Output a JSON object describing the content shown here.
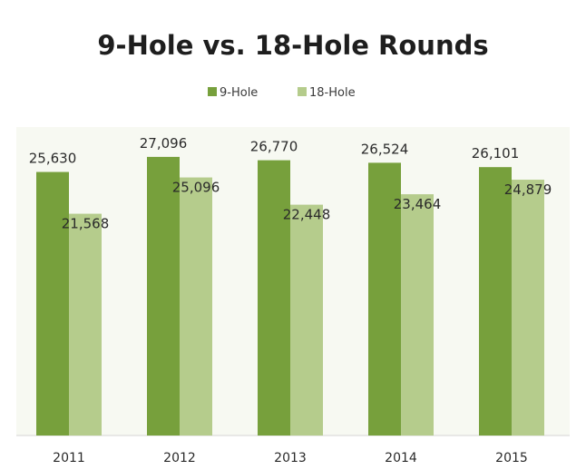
{
  "chart_data": {
    "type": "bar",
    "title": "9-Hole vs. 18-Hole Rounds",
    "categories": [
      "2011",
      "2012",
      "2013",
      "2014",
      "2015"
    ],
    "series": [
      {
        "name": "9-Hole",
        "values": [
          25630,
          27096,
          26770,
          26524,
          26101
        ],
        "labels": [
          "25,630",
          "27,096",
          "26,770",
          "26,524",
          "26,101"
        ],
        "color": "#77a03c"
      },
      {
        "name": "18-Hole",
        "values": [
          21568,
          25096,
          22448,
          23464,
          24879
        ],
        "labels": [
          "21,568",
          "25,096",
          "22,448",
          "23,464",
          "24,879"
        ],
        "color": "#b5cc8c"
      }
    ],
    "xlabel": "",
    "ylabel": "",
    "ylim": [
      0,
      30000
    ],
    "grid": false,
    "legend": "top-center"
  },
  "colors": {
    "plot_background": "#f7f9f2",
    "axis_line": "#d4d4d4"
  }
}
